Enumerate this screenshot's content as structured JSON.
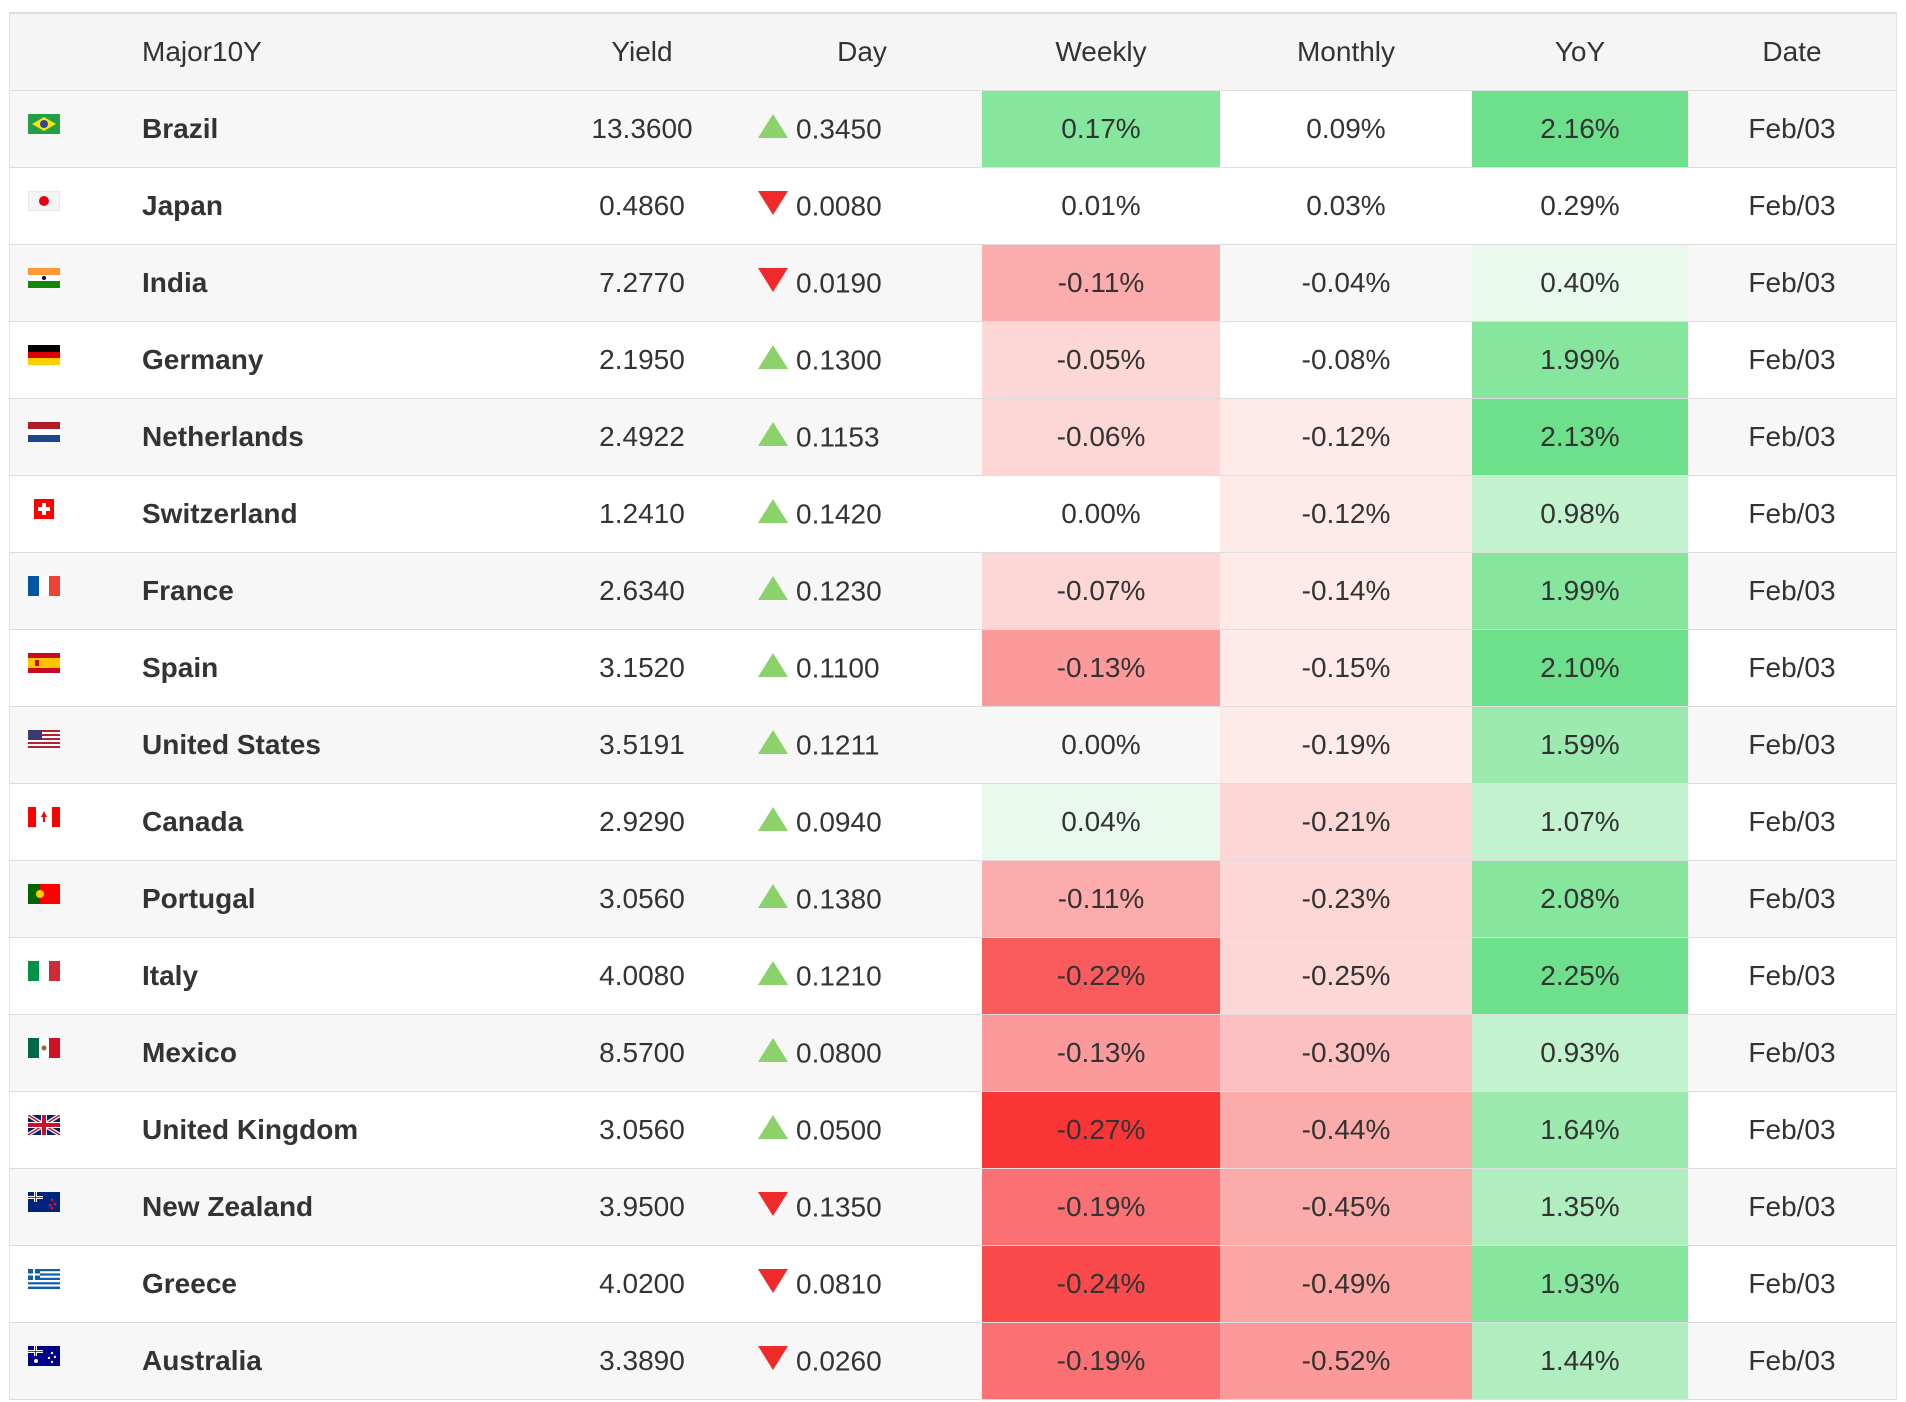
{
  "headers": {
    "name": "Major10Y",
    "yield": "Yield",
    "day": "Day",
    "weekly": "Weekly",
    "monthly": "Monthly",
    "yoy": "YoY",
    "date": "Date"
  },
  "rows": [
    {
      "flag": "brazil-flag-icon",
      "name": "Brazil",
      "yield": "13.3600",
      "day_dir": "up",
      "day": "0.3450",
      "weekly": "0.17%",
      "weekly_color": "#86e69e",
      "monthly": "0.09%",
      "monthly_color": "#ffffff",
      "yoy": "2.16%",
      "yoy_color": "#6ee08b",
      "date": "Feb/03"
    },
    {
      "flag": "japan-flag-icon",
      "name": "Japan",
      "yield": "0.4860",
      "day_dir": "down",
      "day": "0.0080",
      "weekly": "0.01%",
      "weekly_color": "",
      "monthly": "0.03%",
      "monthly_color": "",
      "yoy": "0.29%",
      "yoy_color": "",
      "date": "Feb/03"
    },
    {
      "flag": "india-flag-icon",
      "name": "India",
      "yield": "7.2770",
      "day_dir": "down",
      "day": "0.0190",
      "weekly": "-0.11%",
      "weekly_color": "#fdacad",
      "monthly": "-0.04%",
      "monthly_color": "",
      "yoy": "0.40%",
      "yoy_color": "#eaf9ed",
      "date": "Feb/03"
    },
    {
      "flag": "germany-flag-icon",
      "name": "Germany",
      "yield": "2.1950",
      "day_dir": "up",
      "day": "0.1300",
      "weekly": "-0.05%",
      "weekly_color": "#fdd6d6",
      "monthly": "-0.08%",
      "monthly_color": "",
      "yoy": "1.99%",
      "yoy_color": "#86e69e",
      "date": "Feb/03"
    },
    {
      "flag": "netherlands-flag-icon",
      "name": "Netherlands",
      "yield": "2.4922",
      "day_dir": "up",
      "day": "0.1153",
      "weekly": "-0.06%",
      "weekly_color": "#fdd6d6",
      "monthly": "-0.12%",
      "monthly_color": "#ffeaea",
      "yoy": "2.13%",
      "yoy_color": "#6ee08b",
      "date": "Feb/03"
    },
    {
      "flag": "switzerland-flag-icon",
      "name": "Switzerland",
      "yield": "1.2410",
      "day_dir": "up",
      "day": "0.1420",
      "weekly": "0.00%",
      "weekly_color": "",
      "monthly": "-0.12%",
      "monthly_color": "#ffeaea",
      "yoy": "0.98%",
      "yoy_color": "#c3f2cf",
      "date": "Feb/03"
    },
    {
      "flag": "france-flag-icon",
      "name": "France",
      "yield": "2.6340",
      "day_dir": "up",
      "day": "0.1230",
      "weekly": "-0.07%",
      "weekly_color": "#fdd6d6",
      "monthly": "-0.14%",
      "monthly_color": "#ffeaea",
      "yoy": "1.99%",
      "yoy_color": "#86e69e",
      "date": "Feb/03"
    },
    {
      "flag": "spain-flag-icon",
      "name": "Spain",
      "yield": "3.1520",
      "day_dir": "up",
      "day": "0.1100",
      "weekly": "-0.13%",
      "weekly_color": "#fc9a9b",
      "monthly": "-0.15%",
      "monthly_color": "#ffeaea",
      "yoy": "2.10%",
      "yoy_color": "#6ee08b",
      "date": "Feb/03"
    },
    {
      "flag": "united-states-flag-icon",
      "name": "United States",
      "yield": "3.5191",
      "day_dir": "up",
      "day": "0.1211",
      "weekly": "0.00%",
      "weekly_color": "",
      "monthly": "-0.19%",
      "monthly_color": "#ffeaea",
      "yoy": "1.59%",
      "yoy_color": "#9ceaaf",
      "date": "Feb/03"
    },
    {
      "flag": "canada-flag-icon",
      "name": "Canada",
      "yield": "2.9290",
      "day_dir": "up",
      "day": "0.0940",
      "weekly": "0.04%",
      "weekly_color": "#eaf9ed",
      "monthly": "-0.21%",
      "monthly_color": "#fdd6d6",
      "yoy": "1.07%",
      "yoy_color": "#c3f2cf",
      "date": "Feb/03"
    },
    {
      "flag": "portugal-flag-icon",
      "name": "Portugal",
      "yield": "3.0560",
      "day_dir": "up",
      "day": "0.1380",
      "weekly": "-0.11%",
      "weekly_color": "#fdacad",
      "monthly": "-0.23%",
      "monthly_color": "#fdd6d6",
      "yoy": "2.08%",
      "yoy_color": "#86e69e",
      "date": "Feb/03"
    },
    {
      "flag": "italy-flag-icon",
      "name": "Italy",
      "yield": "4.0080",
      "day_dir": "up",
      "day": "0.1210",
      "weekly": "-0.22%",
      "weekly_color": "#fa5c5d",
      "monthly": "-0.25%",
      "monthly_color": "#fdd6d6",
      "yoy": "2.25%",
      "yoy_color": "#6ee08b",
      "date": "Feb/03"
    },
    {
      "flag": "mexico-flag-icon",
      "name": "Mexico",
      "yield": "8.5700",
      "day_dir": "up",
      "day": "0.0800",
      "weekly": "-0.13%",
      "weekly_color": "#fc9a9b",
      "monthly": "-0.30%",
      "monthly_color": "#fdc0c0",
      "yoy": "0.93%",
      "yoy_color": "#c3f2cf",
      "date": "Feb/03"
    },
    {
      "flag": "united-kingdom-flag-icon",
      "name": "United Kingdom",
      "yield": "3.0560",
      "day_dir": "up",
      "day": "0.0500",
      "weekly": "-0.27%",
      "weekly_color": "#f93536",
      "monthly": "-0.44%",
      "monthly_color": "#fcabab",
      "yoy": "1.64%",
      "yoy_color": "#9ceaaf",
      "date": "Feb/03"
    },
    {
      "flag": "new-zealand-flag-icon",
      "name": "New Zealand",
      "yield": "3.9500",
      "day_dir": "down",
      "day": "0.1350",
      "weekly": "-0.19%",
      "weekly_color": "#fb7072",
      "monthly": "-0.45%",
      "monthly_color": "#fcabab",
      "yoy": "1.35%",
      "yoy_color": "#b0eebf",
      "date": "Feb/03"
    },
    {
      "flag": "greece-flag-icon",
      "name": "Greece",
      "yield": "4.0200",
      "day_dir": "down",
      "day": "0.0810",
      "weekly": "-0.24%",
      "weekly_color": "#fa4a4b",
      "monthly": "-0.49%",
      "monthly_color": "#fca5a5",
      "yoy": "1.93%",
      "yoy_color": "#86e69e",
      "date": "Feb/03"
    },
    {
      "flag": "australia-flag-icon",
      "name": "Australia",
      "yield": "3.3890",
      "day_dir": "down",
      "day": "0.0260",
      "weekly": "-0.19%",
      "weekly_color": "#fb7072",
      "monthly": "-0.52%",
      "monthly_color": "#fc9a9b",
      "yoy": "1.44%",
      "yoy_color": "#b0eebf",
      "date": "Feb/03"
    }
  ]
}
